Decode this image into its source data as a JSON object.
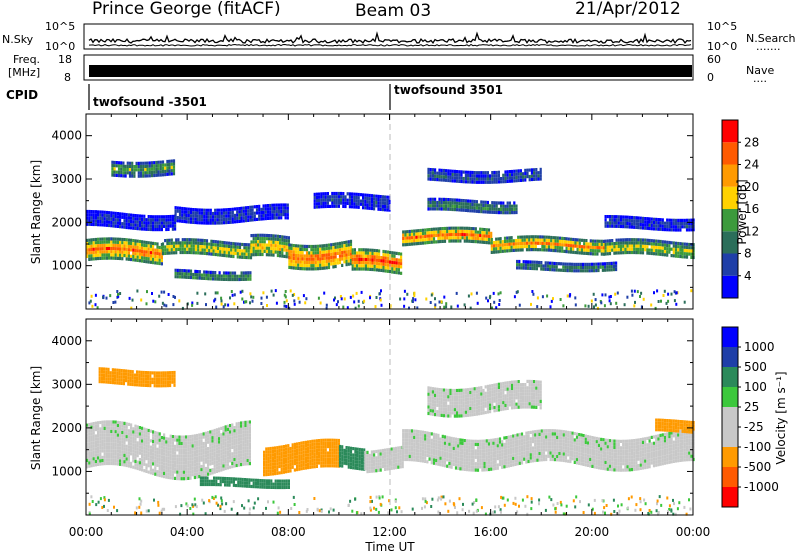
{
  "header": {
    "station": "Prince George (fitACF)",
    "beam": "Beam 03",
    "date": "21/Apr/2012"
  },
  "noise_panel": {
    "left_label": "N.Sky",
    "right_label": "N.Search",
    "right_marker": ".......",
    "left_ticks": [
      "10^5",
      "10^0"
    ],
    "right_ticks": [
      "10^5",
      "10^0"
    ]
  },
  "freq_panel": {
    "left_label_1": "Freq.",
    "left_label_2": "[MHz]",
    "right_label": "Nave",
    "right_marker": "....",
    "left_ticks": [
      "18",
      "8"
    ],
    "right_ticks": [
      "60",
      "0"
    ]
  },
  "cpid": {
    "label": "CPID",
    "segments": [
      {
        "name": "twofsound -3501",
        "start_hour": 0
      },
      {
        "name": "twofsound 3501",
        "start_hour": 12
      }
    ]
  },
  "x_axis": {
    "label": "Time UT",
    "range_hours": [
      0,
      24
    ],
    "ticks": [
      "00:00",
      "04:00",
      "08:00",
      "12:00",
      "16:00",
      "20:00",
      "00:00"
    ]
  },
  "colors": {
    "power": [
      "#0000ff",
      "#1f3fa8",
      "#2b6e5a",
      "#3c9a3c",
      "#ffd200",
      "#ff9a00",
      "#ff5a00",
      "#ff0000"
    ],
    "velocity": [
      "#ff0000",
      "#ff5a00",
      "#ff9a00",
      "#c8c8c8",
      "#c8c8c8",
      "#3cc83c",
      "#2b8a5a",
      "#1f3fa8",
      "#0000ff"
    ]
  },
  "chart_data": [
    {
      "type": "heatmap",
      "title": "",
      "xlabel": "",
      "ylabel": "Slant Range [km]",
      "xlim": [
        0,
        24
      ],
      "ylim": [
        0,
        4500
      ],
      "yticks": [
        1000,
        2000,
        3000,
        4000
      ],
      "colorbar": {
        "label": "Power [dB]",
        "range": [
          0,
          32
        ],
        "ticks": [
          "4",
          "8",
          "12",
          "16",
          "20",
          "24",
          "28"
        ]
      },
      "echo_bands": [
        {
          "from_hour": 0.0,
          "to_hour": 3.0,
          "range_km": 1350,
          "width_km": 450,
          "power_db": 26
        },
        {
          "from_hour": 0.0,
          "to_hour": 3.5,
          "range_km": 2050,
          "width_km": 350,
          "power_db": 5
        },
        {
          "from_hour": 1.0,
          "to_hour": 3.5,
          "range_km": 3300,
          "width_km": 300,
          "power_db": 14
        },
        {
          "from_hour": 3.0,
          "to_hour": 6.5,
          "range_km": 1400,
          "width_km": 350,
          "power_db": 18
        },
        {
          "from_hour": 3.5,
          "to_hour": 6.5,
          "range_km": 800,
          "width_km": 200,
          "power_db": 14
        },
        {
          "from_hour": 3.5,
          "to_hour": 8.0,
          "range_km": 2200,
          "width_km": 350,
          "power_db": 6
        },
        {
          "from_hour": 6.5,
          "to_hour": 8.0,
          "range_km": 1400,
          "width_km": 500,
          "power_db": 20
        },
        {
          "from_hour": 8.0,
          "to_hour": 10.5,
          "range_km": 1300,
          "width_km": 550,
          "power_db": 26
        },
        {
          "from_hour": 10.5,
          "to_hour": 12.5,
          "range_km": 1100,
          "width_km": 450,
          "power_db": 28
        },
        {
          "from_hour": 9.0,
          "to_hour": 12.0,
          "range_km": 2500,
          "width_km": 300,
          "power_db": 6
        },
        {
          "from_hour": 12.5,
          "to_hour": 16.0,
          "range_km": 1700,
          "width_km": 300,
          "power_db": 26
        },
        {
          "from_hour": 13.5,
          "to_hour": 17.0,
          "range_km": 2400,
          "width_km": 250,
          "power_db": 12
        },
        {
          "from_hour": 13.5,
          "to_hour": 18.0,
          "range_km": 3100,
          "width_km": 250,
          "power_db": 8
        },
        {
          "from_hour": 16.0,
          "to_hour": 20.5,
          "range_km": 1500,
          "width_km": 300,
          "power_db": 24
        },
        {
          "from_hour": 17.0,
          "to_hour": 21.0,
          "range_km": 1000,
          "width_km": 200,
          "power_db": 12
        },
        {
          "from_hour": 20.5,
          "to_hour": 24.0,
          "range_km": 1400,
          "width_km": 350,
          "power_db": 18
        },
        {
          "from_hour": 20.5,
          "to_hour": 24.0,
          "range_km": 2000,
          "width_km": 250,
          "power_db": 6
        }
      ]
    },
    {
      "type": "heatmap",
      "title": "",
      "xlabel": "Time UT",
      "ylabel": "Slant Range [km]",
      "xlim": [
        0,
        24
      ],
      "ylim": [
        0,
        4500
      ],
      "yticks": [
        1000,
        2000,
        3000,
        4000
      ],
      "colorbar": {
        "label": "Velocity [m s⁻¹]",
        "ticks": [
          "1000",
          "500",
          "100",
          "25",
          "-25",
          "-100",
          "-500",
          "-1000"
        ]
      },
      "echo_bands": [
        {
          "from_hour": 0.0,
          "to_hour": 6.5,
          "range_km": 1500,
          "width_km": 1000,
          "velocity_ms": 0
        },
        {
          "from_hour": 0.5,
          "to_hour": 3.5,
          "range_km": 3200,
          "width_km": 300,
          "velocity_ms": -200
        },
        {
          "from_hour": 4.5,
          "to_hour": 8.0,
          "range_km": 750,
          "width_km": 200,
          "velocity_ms": 150
        },
        {
          "from_hour": 7.0,
          "to_hour": 10.0,
          "range_km": 1350,
          "width_km": 600,
          "velocity_ms": -250
        },
        {
          "from_hour": 10.0,
          "to_hour": 11.0,
          "range_km": 1350,
          "width_km": 500,
          "velocity_ms": 200
        },
        {
          "from_hour": 11.0,
          "to_hour": 12.5,
          "range_km": 1300,
          "width_km": 500,
          "velocity_ms": 0
        },
        {
          "from_hour": 12.5,
          "to_hour": 24.0,
          "range_km": 1500,
          "width_km": 700,
          "velocity_ms": 0
        },
        {
          "from_hour": 13.5,
          "to_hour": 18.0,
          "range_km": 2700,
          "width_km": 600,
          "velocity_ms": 0
        },
        {
          "from_hour": 22.5,
          "to_hour": 24.0,
          "range_km": 2050,
          "width_km": 250,
          "velocity_ms": -300
        }
      ]
    }
  ]
}
